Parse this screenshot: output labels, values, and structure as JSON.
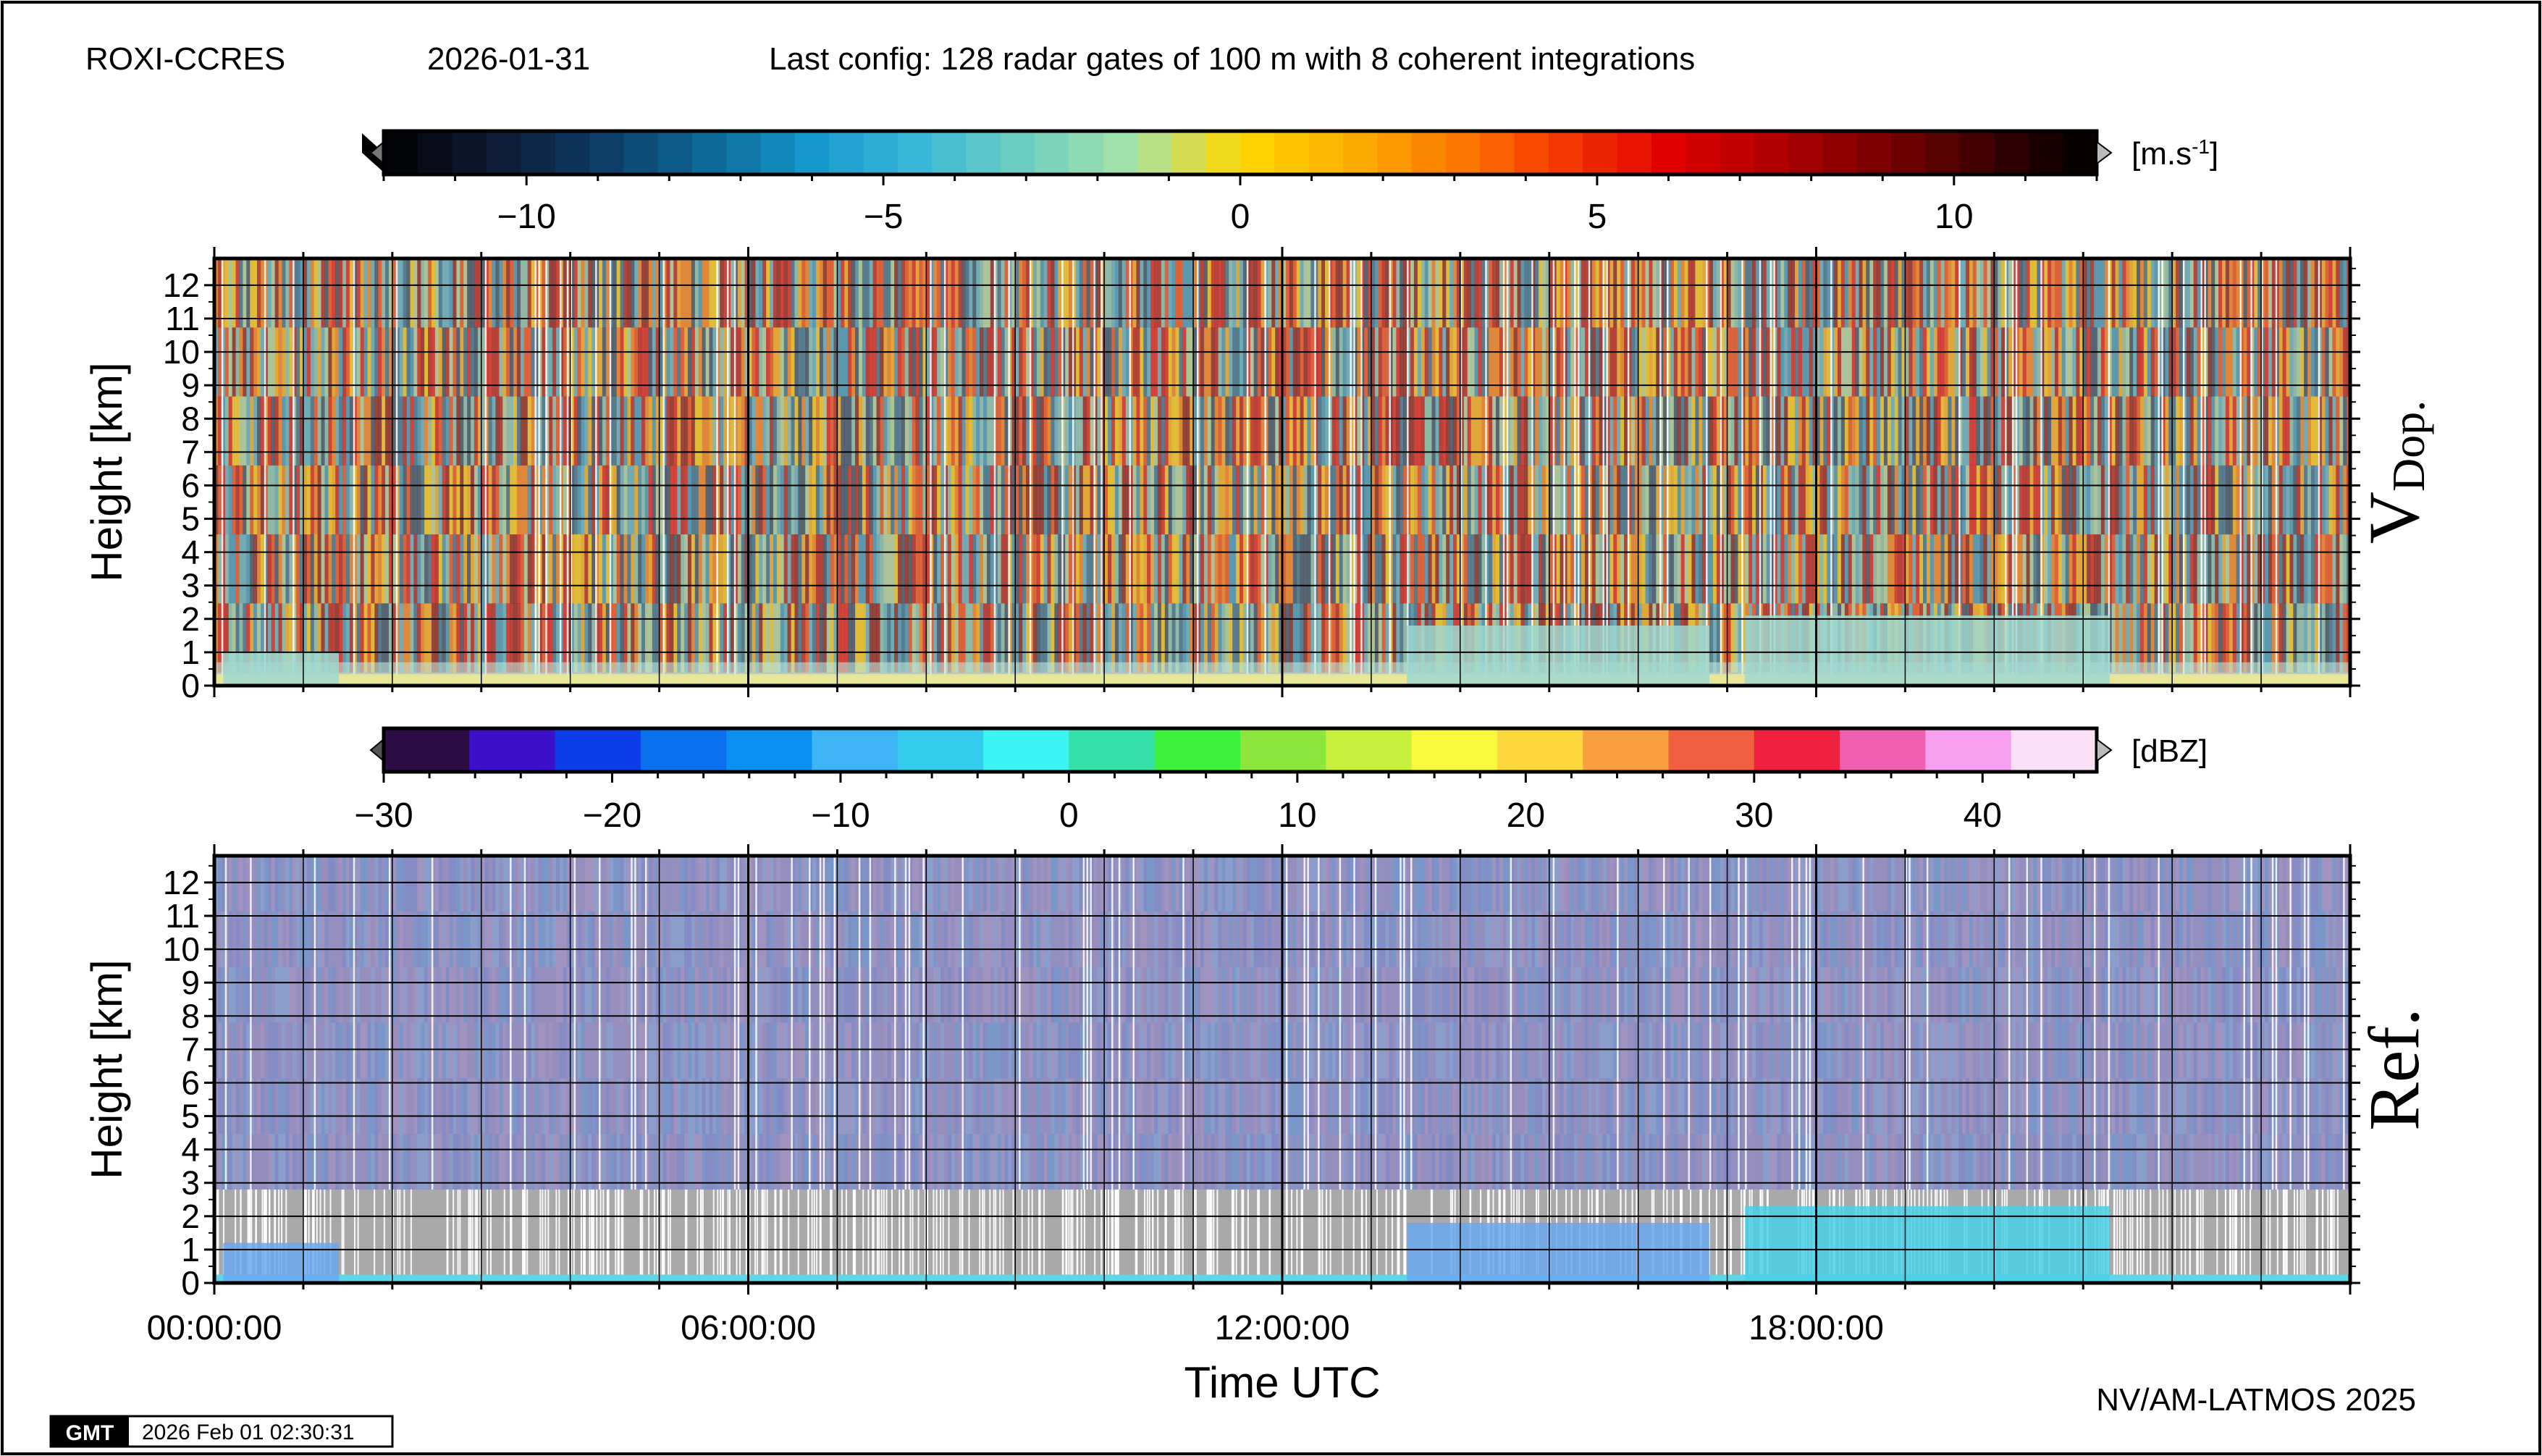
{
  "header": {
    "station": "ROXI-CCRES",
    "date": "2026-01-31",
    "config": "Last config: 128 radar gates of 100 m with 8 coherent integrations"
  },
  "footer": {
    "credit": "NV/AM-LATMOS 2025",
    "gmt_logo": "GMT",
    "timestamp": "2026 Feb 01 02:30:31"
  },
  "colorbars": {
    "velocity": {
      "unit_base": "[m.s",
      "unit_exp": "-1",
      "unit_close": "]",
      "range": [
        -12,
        12
      ],
      "ticks": [
        -10,
        -5,
        0,
        5,
        10
      ],
      "tick_labels": [
        "−10",
        "−5",
        "0",
        "5",
        "10"
      ],
      "stops": [
        "#000000",
        "#0e1a33",
        "#0d3a63",
        "#0b6695",
        "#1598cc",
        "#3bb8d8",
        "#6fcfc0",
        "#a6e3a8",
        "#ffd700",
        "#fdb000",
        "#fb7a00",
        "#f53800",
        "#e00000",
        "#b00000",
        "#7a0000",
        "#3a0000",
        "#000000"
      ]
    },
    "reflectivity": {
      "unit": "[dBZ]",
      "range": [
        -30,
        45
      ],
      "ticks": [
        -30,
        -20,
        -10,
        0,
        10,
        20,
        30,
        40
      ],
      "tick_labels": [
        "−30",
        "−20",
        "−10",
        "0",
        "10",
        "20",
        "30",
        "40"
      ],
      "colors": [
        "#2e0d47",
        "#3b10c8",
        "#0a3de8",
        "#0a70ee",
        "#0a90f0",
        "#3fb4f4",
        "#35cdee",
        "#3cf2f2",
        "#34e0a8",
        "#3cf03c",
        "#8ce63c",
        "#c6f03c",
        "#f8f83c",
        "#fcd83c",
        "#f8a040",
        "#f06040",
        "#f02040",
        "#f060b0",
        "#f8a0f0",
        "#fce0f8"
      ]
    }
  },
  "chart_data": [
    {
      "type": "heatmap",
      "name": "V_Dop.",
      "variable_label": "V",
      "variable_sub": "Dop.",
      "ylabel": "Height [km]",
      "ylim": [
        0,
        12.8
      ],
      "yticks": [
        0,
        1,
        2,
        3,
        4,
        5,
        6,
        7,
        8,
        9,
        10,
        11,
        12
      ],
      "xlim_hours": [
        0,
        24
      ],
      "xticks": [
        "00:00:00",
        "06:00:00",
        "12:00:00",
        "18:00:00"
      ],
      "grid": true,
      "colorbar": "velocity",
      "features": [
        {
          "description": "surface noise layer",
          "start_h": 0,
          "end_h": 24,
          "top_km": 0.35
        },
        {
          "description": "low cloud echoes",
          "start_h": 0.1,
          "end_h": 1.4,
          "top_km": 1.0
        },
        {
          "description": "boundary layer clouds",
          "start_h": 13.4,
          "end_h": 16.8,
          "top_km": 1.8
        },
        {
          "description": "boundary layer clouds",
          "start_h": 17.2,
          "end_h": 21.3,
          "top_km": 2.1
        }
      ]
    },
    {
      "type": "heatmap",
      "name": "Ref.",
      "variable_label": "Ref.",
      "ylabel": "Height [km]",
      "xlabel": "Time UTC",
      "ylim": [
        0,
        12.8
      ],
      "yticks": [
        0,
        1,
        2,
        3,
        4,
        5,
        6,
        7,
        8,
        9,
        10,
        11,
        12
      ],
      "xlim_hours": [
        0,
        24
      ],
      "xticks": [
        "00:00:00",
        "06:00:00",
        "12:00:00",
        "18:00:00"
      ],
      "grid": true,
      "colorbar": "reflectivity",
      "features": [
        {
          "description": "low echoes",
          "start_h": 0.1,
          "end_h": 1.4,
          "top_km": 1.2,
          "dbz": -8
        },
        {
          "description": "boundary layer clouds",
          "start_h": 13.4,
          "end_h": 16.8,
          "top_km": 1.8,
          "dbz": -2
        },
        {
          "description": "boundary layer clouds",
          "start_h": 17.2,
          "end_h": 21.3,
          "top_km": 2.3,
          "dbz": 5
        }
      ]
    }
  ]
}
